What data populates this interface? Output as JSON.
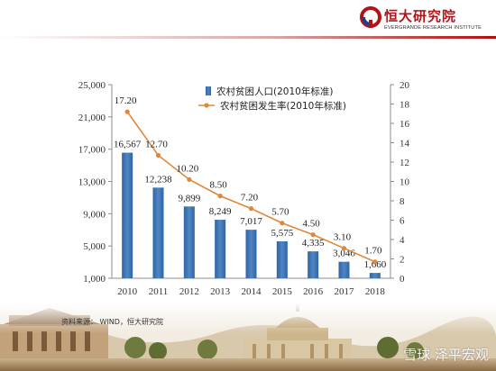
{
  "header": {
    "brand_name": "恒大研究院",
    "brand_sub": "EVERGRANDE RESEARCH INSTITUTE"
  },
  "source_note": "资料来源： WIND，恒大研究院",
  "watermark": "雪球 泽平宏观",
  "colors": {
    "bar": "#4f86c3",
    "line": "#e0883a",
    "brand_red": "#b01318"
  },
  "chart_data": {
    "type": "bar+line",
    "categories": [
      "2010",
      "2011",
      "2012",
      "2013",
      "2014",
      "2015",
      "2016",
      "2017",
      "2018"
    ],
    "series": [
      {
        "name": "农村贫困人口(2010年标准)",
        "type": "bar",
        "axis": "left",
        "values": [
          16567,
          12238,
          9899,
          8249,
          7017,
          5575,
          4335,
          3046,
          1660
        ],
        "labels": [
          "16,567",
          "12,238",
          "9,899",
          "8,249",
          "7,017",
          "5,575",
          "4,335",
          "3,046",
          "1,660"
        ]
      },
      {
        "name": "农村贫困发生率(2010年标准)",
        "type": "line",
        "axis": "right",
        "values": [
          17.2,
          12.7,
          10.2,
          8.5,
          7.2,
          5.7,
          4.5,
          3.1,
          1.7
        ],
        "labels": [
          "17.20",
          "12.70",
          "10.20",
          "8.50",
          "7.20",
          "5.70",
          "4.50",
          "3.10",
          "1.70"
        ]
      }
    ],
    "y_left": {
      "min": 1000,
      "max": 25000,
      "ticks": [
        1000,
        5000,
        9000,
        13000,
        17000,
        21000,
        25000
      ],
      "tick_labels": [
        "1,000",
        "5,000",
        "9,000",
        "13,000",
        "17,000",
        "21,000",
        "25,000"
      ]
    },
    "y_right": {
      "min": 0,
      "max": 20,
      "ticks": [
        0,
        2,
        4,
        6,
        8,
        10,
        12,
        14,
        16,
        18,
        20
      ],
      "tick_labels": [
        "0",
        "2",
        "4",
        "6",
        "8",
        "10",
        "12",
        "14",
        "16",
        "18",
        "20"
      ]
    },
    "grid": false,
    "legend_position": "top-right"
  }
}
